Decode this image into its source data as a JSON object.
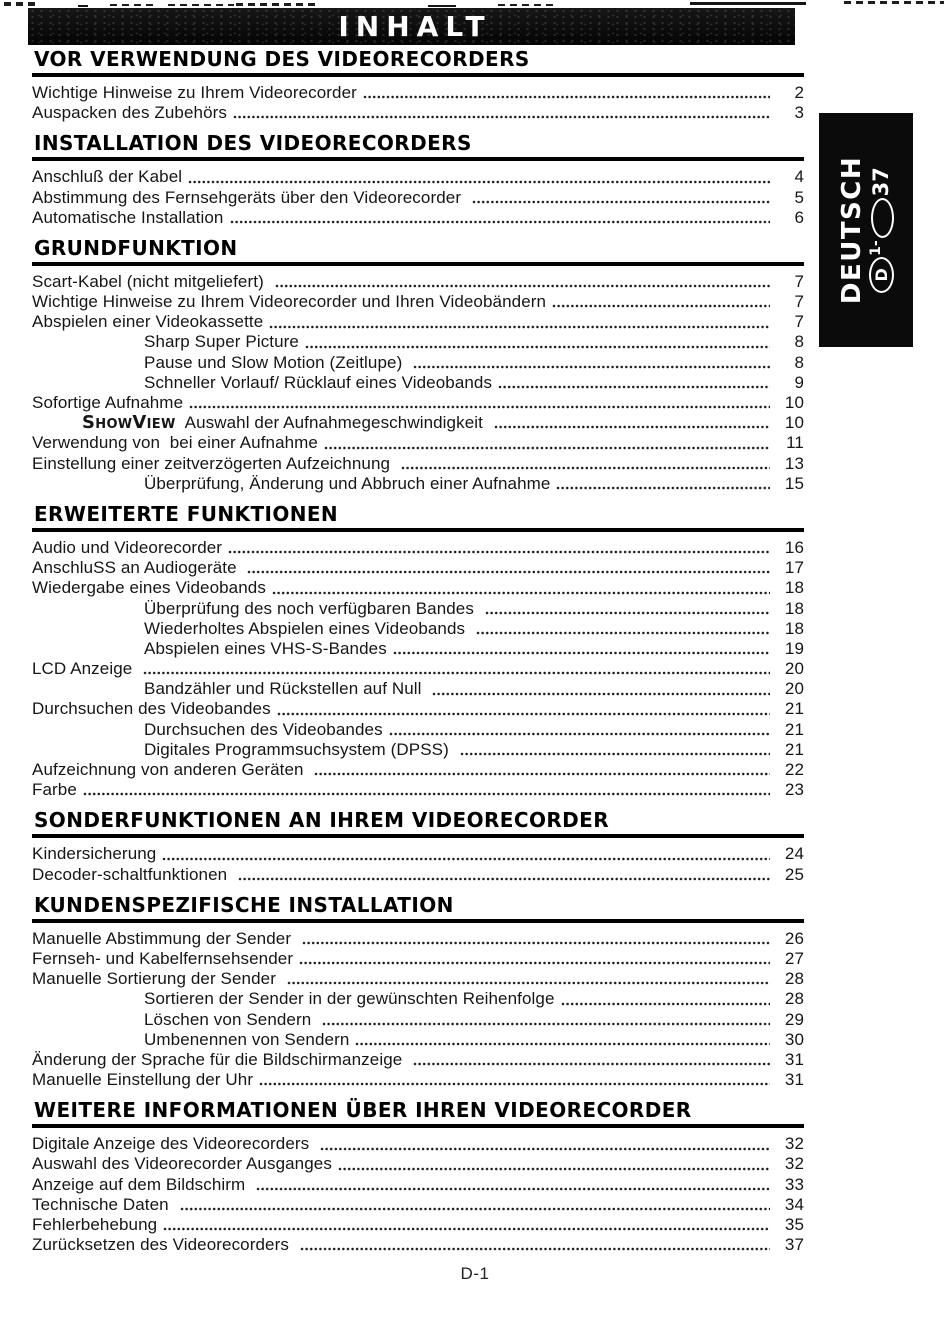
{
  "banner": {
    "title": "INHALT"
  },
  "side_tab": {
    "language": "DEUTSCH",
    "range": {
      "letter": "D",
      "from": "1-",
      "to": "37"
    }
  },
  "footer": {
    "page_label": "D-1"
  },
  "sections": [
    {
      "heading": "VOR VERWENDUNG DES VIDEORECORDERS",
      "entries": [
        {
          "label": "Wichtige Hinweise zu Ihrem Videorecorder",
          "page": "2"
        },
        {
          "label": "Auspacken des Zubehörs",
          "page": "3"
        }
      ]
    },
    {
      "heading": "INSTALLATION DES VIDEORECORDERS",
      "entries": [
        {
          "label": "Anschluß der Kabel",
          "page": "4"
        },
        {
          "label": "Abstimmung des Fernsehgeräts über den Videorecorder ",
          "page": "5"
        },
        {
          "label": "Automatische Installation",
          "page": "6"
        }
      ]
    },
    {
      "heading": "GRUNDFUNKTION",
      "entries": [
        {
          "label": "Scart-Kabel (nicht mitgeliefert) ",
          "page": "7"
        },
        {
          "label": "Wichtige Hinweise zu Ihrem Videorecorder und Ihren Videobändern",
          "page": "7"
        },
        {
          "label": "Abspielen einer Videokassette",
          "page": "7"
        },
        {
          "label": "Sharp Super Picture",
          "page": "8",
          "indent": true
        },
        {
          "label": "Pause und Slow Motion (Zeitlupe) ",
          "page": "8",
          "indent": true
        },
        {
          "label": "Schneller Vorlauf/ Rücklauf eines Videobands",
          "page": "9",
          "indent": true
        },
        {
          "label": "Sofortige Aufnahme",
          "page": "10"
        },
        {
          "label": "Auswahl der Aufnahmegeschwindigkeit ",
          "page": "10",
          "logo": "ShowView"
        },
        {
          "label": "Verwendung von  bei einer Aufnahme",
          "page": "11"
        },
        {
          "label": "Einstellung einer zeitverzögerten Aufzeichnung ",
          "page": "13"
        },
        {
          "label": "Überprüfung, Änderung und Abbruch einer Aufnahme",
          "page": "15",
          "indent": true
        }
      ]
    },
    {
      "heading": "ERWEITERTE FUNKTIONEN",
      "entries": [
        {
          "label": "Audio und Videorecorder",
          "page": "16"
        },
        {
          "label": "AnschluSS an Audiogeräte ",
          "page": "17"
        },
        {
          "label": "Wiedergabe eines Videobands",
          "page": "18"
        },
        {
          "label": "Überprüfung des noch verfügbaren Bandes ",
          "page": "18",
          "indent": true
        },
        {
          "label": "Wiederholtes Abspielen eines Videobands ",
          "page": "18",
          "indent": true
        },
        {
          "label": "Abspielen eines VHS-S-Bandes",
          "page": "19",
          "indent": true
        },
        {
          "label": "LCD Anzeige ",
          "page": "20"
        },
        {
          "label": "Bandzähler und Rückstellen auf Null ",
          "page": "20",
          "indent": true
        },
        {
          "label": "Durchsuchen des Videobandes",
          "page": "21"
        },
        {
          "label": "Durchsuchen des Videobandes",
          "page": "21",
          "indent": true
        },
        {
          "label": "Digitales Programmsuchsystem (DPSS) ",
          "page": "21",
          "indent": true
        },
        {
          "label": "Aufzeichnung von anderen Geräten ",
          "page": "22"
        },
        {
          "label": "Farbe",
          "page": "23"
        }
      ]
    },
    {
      "heading": "SONDERFUNKTIONEN AN IHREM VIDEORECORDER",
      "entries": [
        {
          "label": "Kindersicherung",
          "page": "24"
        },
        {
          "label": "Decoder-schaltfunktionen ",
          "page": "25"
        }
      ]
    },
    {
      "heading": "KUNDENSPEZIFISCHE INSTALLATION",
      "entries": [
        {
          "label": "Manuelle Abstimmung der Sender ",
          "page": "26"
        },
        {
          "label": "Fernseh- und Kabelfernsehsender",
          "page": "27"
        },
        {
          "label": "Manuelle Sortierung der Sender ",
          "page": "28"
        },
        {
          "label": "Sortieren der Sender in der gewünschten Reihenfolge",
          "page": "28",
          "indent": true
        },
        {
          "label": "Löschen von Sendern ",
          "page": "29",
          "indent": true
        },
        {
          "label": "Umbenennen von Sendern",
          "page": "30",
          "indent": true
        },
        {
          "label": "Änderung der Sprache für die Bildschirmanzeige ",
          "page": "31"
        },
        {
          "label": "Manuelle Einstellung der Uhr",
          "page": "31"
        }
      ]
    },
    {
      "heading": "WEITERE INFORMATIONEN ÜBER IHREN VIDEORECORDER",
      "entries": [
        {
          "label": "Digitale Anzeige des Videorecorders ",
          "page": "32"
        },
        {
          "label": "Auswahl des Videorecorder Ausganges",
          "page": "32"
        },
        {
          "label": "Anzeige auf dem Bildschirm ",
          "page": "33"
        },
        {
          "label": "Technische Daten ",
          "page": "34"
        },
        {
          "label": "Fehlerbehebung",
          "page": "35"
        },
        {
          "label": "Zurücksetzen des Videorecorders ",
          "page": "37"
        }
      ]
    }
  ]
}
